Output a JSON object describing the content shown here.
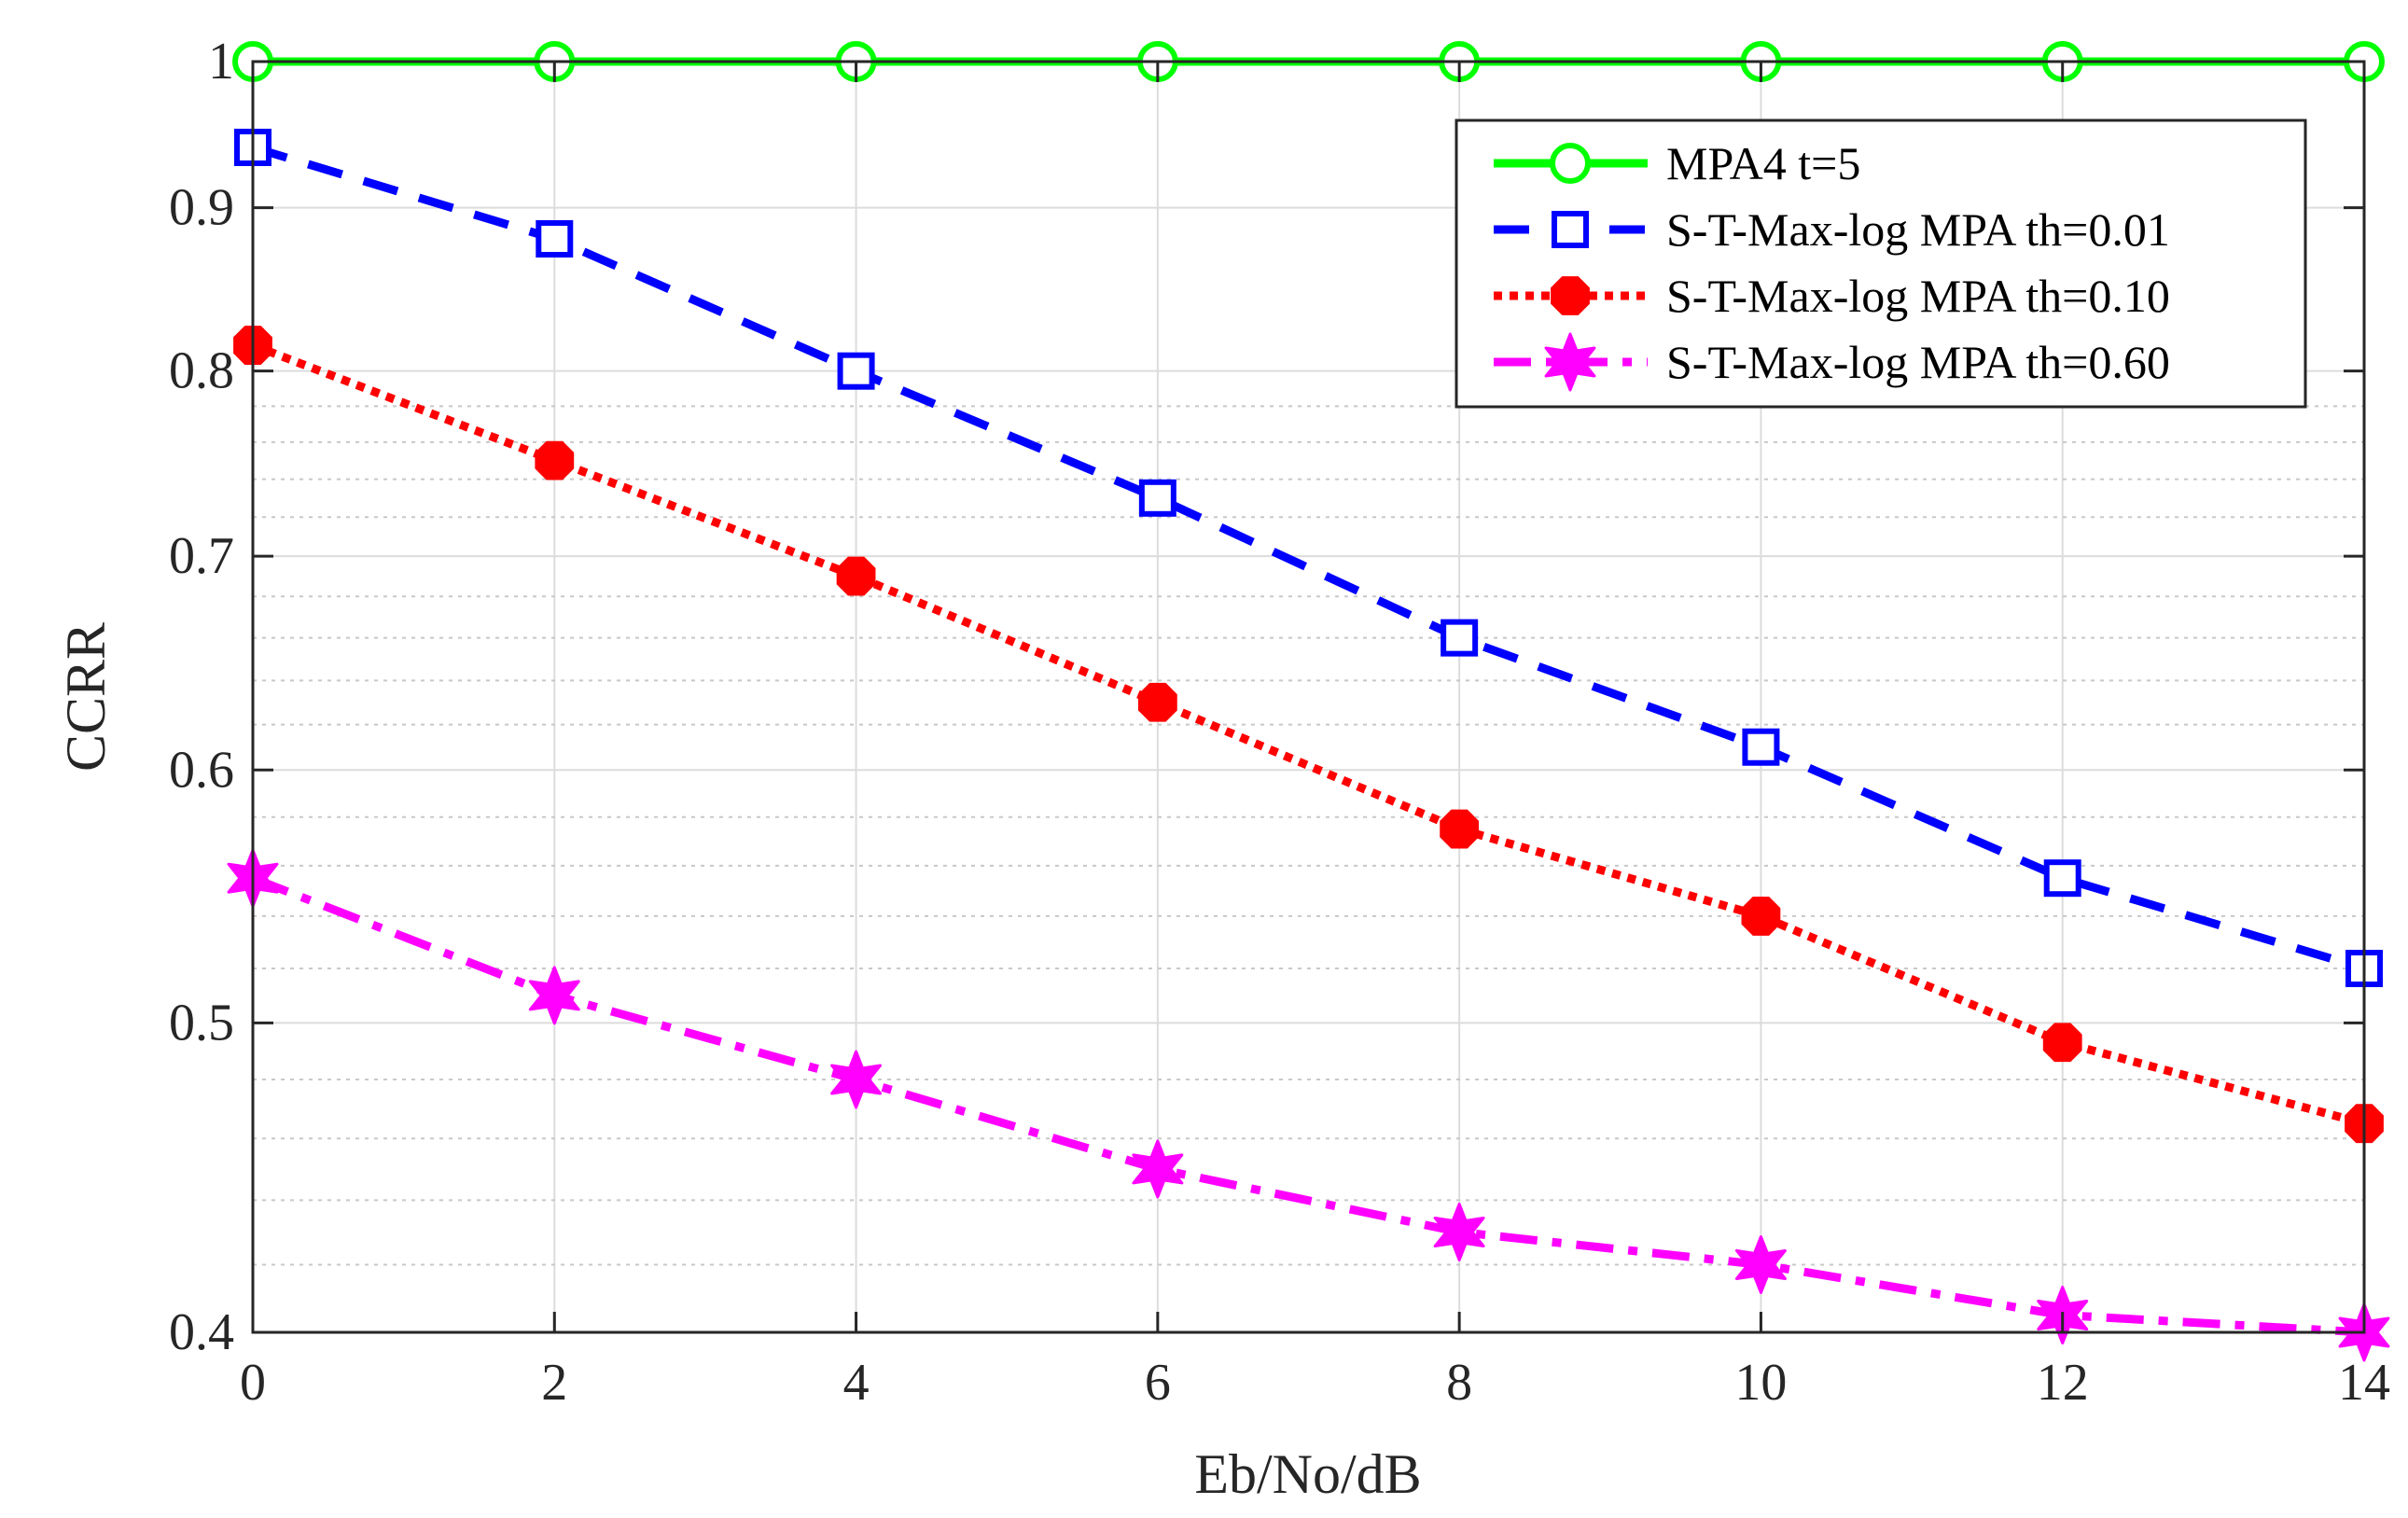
{
  "chart_data": {
    "type": "line",
    "title": "",
    "xlabel": "Eb/No/dB",
    "ylabel": "CCRR",
    "xlim": [
      0,
      14
    ],
    "ylim": [
      0.4,
      1
    ],
    "yscale": "log",
    "grid": true,
    "legend_position": "top-right",
    "x_ticks": [
      {
        "value": 0,
        "label": "0"
      },
      {
        "value": 2,
        "label": "2"
      },
      {
        "value": 4,
        "label": "4"
      },
      {
        "value": 6,
        "label": "6"
      },
      {
        "value": 8,
        "label": "8"
      },
      {
        "value": 10,
        "label": "10"
      },
      {
        "value": 12,
        "label": "12"
      },
      {
        "value": 14,
        "label": "14"
      }
    ],
    "y_ticks": [
      {
        "value": 0.4,
        "label": "0.4"
      },
      {
        "value": 0.5,
        "label": "0.5"
      },
      {
        "value": 0.6,
        "label": "0.6"
      },
      {
        "value": 0.7,
        "label": "0.7"
      },
      {
        "value": 0.8,
        "label": "0.8"
      },
      {
        "value": 0.9,
        "label": "0.9"
      },
      {
        "value": 1,
        "label": "1"
      }
    ],
    "x": [
      0,
      2,
      4,
      6,
      8,
      10,
      12,
      14
    ],
    "series": [
      {
        "id": "mpa4",
        "name": "MPA4 t=5",
        "color": "#00ff00",
        "line_style": "solid",
        "marker": "circle",
        "values": [
          1.0,
          1.0,
          1.0,
          1.0,
          1.0,
          1.0,
          1.0,
          1.0
        ]
      },
      {
        "id": "th001",
        "name": "S-T-Max-log MPA th=0.01",
        "color": "#0000ff",
        "line_style": "dashed",
        "marker": "square",
        "values": [
          0.94,
          0.88,
          0.8,
          0.73,
          0.66,
          0.61,
          0.555,
          0.52
        ]
      },
      {
        "id": "th010",
        "name": "S-T-Max-log MPA th=0.10",
        "color": "#ff0000",
        "line_style": "dotted",
        "marker": "octagon",
        "values": [
          0.815,
          0.75,
          0.69,
          0.63,
          0.575,
          0.54,
          0.493,
          0.465
        ]
      },
      {
        "id": "th060",
        "name": "S-T-Max-log MPA th=0.60",
        "color": "#ff00ff",
        "line_style": "dashdot",
        "marker": "hexagram",
        "values": [
          0.555,
          0.51,
          0.48,
          0.45,
          0.43,
          0.42,
          0.405,
          0.4
        ]
      }
    ]
  }
}
